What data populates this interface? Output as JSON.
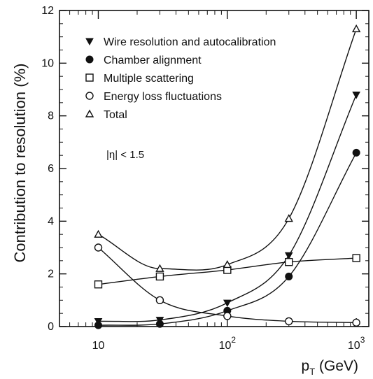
{
  "chart_data": {
    "type": "line",
    "xscale": "log",
    "xlim": [
      5,
      1250
    ],
    "ylim": [
      0,
      12
    ],
    "xlabel_main": "p",
    "xlabel_sub": "T",
    "xlabel_unit": " (GeV)",
    "ylabel": "Contribution to resolution (%)",
    "x_ticks": [
      {
        "value": 10,
        "label": "10",
        "exp": ""
      },
      {
        "value": 100,
        "label": "10",
        "exp": "2"
      },
      {
        "value": 1000,
        "label": "10",
        "exp": "3"
      }
    ],
    "y_ticks": [
      {
        "value": 0,
        "label": "0"
      },
      {
        "value": 2,
        "label": "2"
      },
      {
        "value": 4,
        "label": "4"
      },
      {
        "value": 6,
        "label": "6"
      },
      {
        "value": 8,
        "label": "8"
      },
      {
        "value": 10,
        "label": "10"
      },
      {
        "value": 12,
        "label": "12"
      }
    ],
    "annotation": "|η| < 1.5",
    "grid": false,
    "legend_position": "top-left",
    "series": [
      {
        "name": "Wire resolution and autocalibration",
        "marker": "triangle-down",
        "x": [
          10,
          30,
          100,
          300,
          1000
        ],
        "y": [
          0.2,
          0.25,
          0.9,
          2.7,
          8.8
        ]
      },
      {
        "name": "Chamber alignment",
        "marker": "filled-circle",
        "x": [
          10,
          30,
          100,
          300,
          1000
        ],
        "y": [
          0.05,
          0.1,
          0.6,
          1.9,
          6.6
        ]
      },
      {
        "name": "Multiple scattering",
        "marker": "open-square",
        "x": [
          10,
          30,
          100,
          300,
          1000
        ],
        "y": [
          1.6,
          1.9,
          2.15,
          2.45,
          2.6
        ]
      },
      {
        "name": "Energy loss fluctuations",
        "marker": "open-circle",
        "x": [
          10,
          30,
          100,
          300,
          1000
        ],
        "y": [
          3.0,
          1.0,
          0.4,
          0.2,
          0.15
        ]
      },
      {
        "name": "Total",
        "marker": "open-triangle",
        "x": [
          10,
          30,
          100,
          300,
          1000
        ],
        "y": [
          3.5,
          2.2,
          2.35,
          4.1,
          11.3
        ]
      }
    ]
  }
}
